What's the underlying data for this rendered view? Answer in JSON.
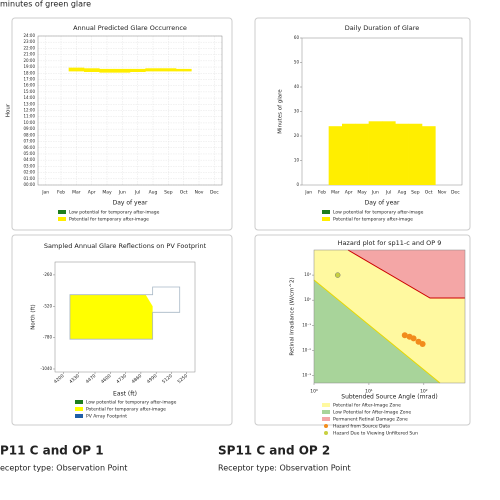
{
  "page": {
    "top_note": "minutes of green glare",
    "sections": [
      {
        "title": "P11 C and OP 1",
        "receptor": "eceptor type: Observation Point"
      },
      {
        "title": "SP11 C and OP 2",
        "receptor": "Receptor type: Observation Point"
      }
    ]
  },
  "chart_data": [
    {
      "type": "range",
      "title": "Annual Predicted Glare Occurrence",
      "xlabel": "Day of year",
      "ylabel": "Hour",
      "categories": [
        "Jan",
        "Feb",
        "Mar",
        "Apr",
        "May",
        "Jun",
        "Jul",
        "Aug",
        "Sep",
        "Oct",
        "Nov",
        "Dec"
      ],
      "ylim": [
        0,
        24
      ],
      "yticks": [
        {
          "value": 0,
          "label": "00:00"
        },
        {
          "value": 1,
          "label": "01:00"
        },
        {
          "value": 2,
          "label": "02:00"
        },
        {
          "value": 3,
          "label": "03:00"
        },
        {
          "value": 4,
          "label": "04:00"
        },
        {
          "value": 5,
          "label": "05:00"
        },
        {
          "value": 6,
          "label": "06:00"
        },
        {
          "value": 7,
          "label": "07:00"
        },
        {
          "value": 8,
          "label": "08:00"
        },
        {
          "value": 9,
          "label": "09:00"
        },
        {
          "value": 10,
          "label": "10:00"
        },
        {
          "value": 11,
          "label": "11:00"
        },
        {
          "value": 12,
          "label": "12:00"
        },
        {
          "value": 13,
          "label": "13:00"
        },
        {
          "value": 14,
          "label": "14:00"
        },
        {
          "value": 15,
          "label": "15:00"
        },
        {
          "value": 16,
          "label": "16:00"
        },
        {
          "value": 17,
          "label": "17:00"
        },
        {
          "value": 18,
          "label": "18:00"
        },
        {
          "value": 19,
          "label": "19:00"
        },
        {
          "value": 20,
          "label": "20:00"
        },
        {
          "value": 21,
          "label": "21:00"
        },
        {
          "value": 22,
          "label": "22:00"
        },
        {
          "value": 23,
          "label": "23:00"
        },
        {
          "value": 24,
          "label": "24:00"
        }
      ],
      "grid": true,
      "series": [
        {
          "name": "Low potential for temporary after-image",
          "color": "#1e7d1e",
          "low": [
            null,
            null,
            null,
            null,
            null,
            null,
            null,
            null,
            null,
            null,
            null,
            null
          ],
          "high": [
            null,
            null,
            null,
            null,
            null,
            null,
            null,
            null,
            null,
            null,
            null,
            null
          ]
        },
        {
          "name": "Potential for temporary after-image",
          "color": "#ffee00",
          "low": [
            null,
            null,
            18.3,
            18.2,
            18.1,
            18.1,
            18.2,
            18.3,
            18.3,
            18.3,
            null,
            null
          ],
          "high": [
            null,
            null,
            18.9,
            18.8,
            18.7,
            18.7,
            18.7,
            18.8,
            18.8,
            18.7,
            null,
            null
          ]
        }
      ]
    },
    {
      "type": "bar",
      "title": "Daily Duration of Glare",
      "xlabel": "Day of year",
      "ylabel": "Minutes of glare",
      "categories": [
        "Jan",
        "Feb",
        "Mar",
        "Apr",
        "May",
        "Jun",
        "Jul",
        "Aug",
        "Sep",
        "Oct",
        "Nov",
        "Dec"
      ],
      "ylim": [
        0,
        60
      ],
      "yticks": [
        0,
        10,
        20,
        30,
        40,
        50,
        60
      ],
      "grid": false,
      "series": [
        {
          "name": "Low potential for temporary after-image",
          "color": "#1e7d1e",
          "values": [
            null,
            null,
            null,
            null,
            null,
            null,
            null,
            null,
            null,
            null,
            null,
            null
          ]
        },
        {
          "name": "Potential for temporary after-image",
          "color": "#ffee00",
          "values": [
            null,
            null,
            24,
            25,
            25,
            26,
            26,
            25,
            25,
            24,
            null,
            null
          ]
        }
      ]
    },
    {
      "type": "polygon",
      "title": "Sampled Annual Glare Reflections on PV Footprint",
      "xlabel": "East (ft)",
      "ylabel": "North (ft)",
      "xlim": [
        4130,
        5320
      ],
      "xticks": [
        4200,
        4330,
        4470,
        4600,
        4730,
        4860,
        4990,
        5120,
        5250
      ],
      "ylim": [
        -1065,
        -153
      ],
      "yticks": [
        -260,
        -520,
        -780,
        -1040
      ],
      "grid": false,
      "series": [
        {
          "name": "Low potential for temporary after-image",
          "color": "#1e7d1e",
          "x": [],
          "values": []
        },
        {
          "name": "Potential for temporary after-image",
          "color": "#ffff00",
          "x": [
            4257,
            4900,
            4960,
            4960,
            4257
          ],
          "values": [
            -424,
            -424,
            -520,
            -793,
            -793
          ]
        },
        {
          "name": "PV Array Footprint",
          "color": "#1f5fa8",
          "outline": "#a9b8c6",
          "x": [
            4257,
            4960,
            4960,
            5190,
            5190,
            4960,
            4960,
            4257
          ],
          "values": [
            -424,
            -424,
            -360,
            -360,
            -570,
            -570,
            -793,
            -793
          ]
        }
      ]
    },
    {
      "type": "scatter",
      "title": "Hazard plot for sp11-c and OP 9",
      "xlabel": "Subtended Source Angle (mrad)",
      "ylabel": "Retinal Irradiance (W/cm^2)",
      "log_x": true,
      "log_y": true,
      "xlim": [
        1,
        562
      ],
      "xticks": [
        {
          "value": 1,
          "label": "10⁰"
        },
        {
          "value": 10,
          "label": "10¹"
        },
        {
          "value": 100,
          "label": "10²"
        }
      ],
      "ylim": [
        0.0005,
        100
      ],
      "yticks": [
        {
          "value": 10,
          "label": "10¹"
        },
        {
          "value": 1,
          "label": "10⁰"
        },
        {
          "value": 0.1,
          "label": "10⁻¹"
        },
        {
          "value": 0.01,
          "label": "10⁻²"
        },
        {
          "value": 0.001,
          "label": "10⁻³"
        }
      ],
      "series": [
        {
          "name": "Potential for After-Image Zone",
          "color": "#fff9a0",
          "zone": true
        },
        {
          "name": "Low Potential for After-Image Zone",
          "color": "#a8d49a",
          "zone": true
        },
        {
          "name": "Permanent Retinal Damage Zone",
          "color": "#f4a6a6",
          "zone": true
        },
        {
          "name": "Hazard from Source Data",
          "color": "#f28c1c",
          "x": [
            45,
            55,
            65,
            80,
            95
          ],
          "values": [
            0.04,
            0.035,
            0.03,
            0.022,
            0.018
          ]
        },
        {
          "name": "Hazard Due to Viewing Unfiltered Sun",
          "color": "#c8d040",
          "x": [
            2.7
          ],
          "values": [
            10
          ]
        }
      ]
    }
  ]
}
